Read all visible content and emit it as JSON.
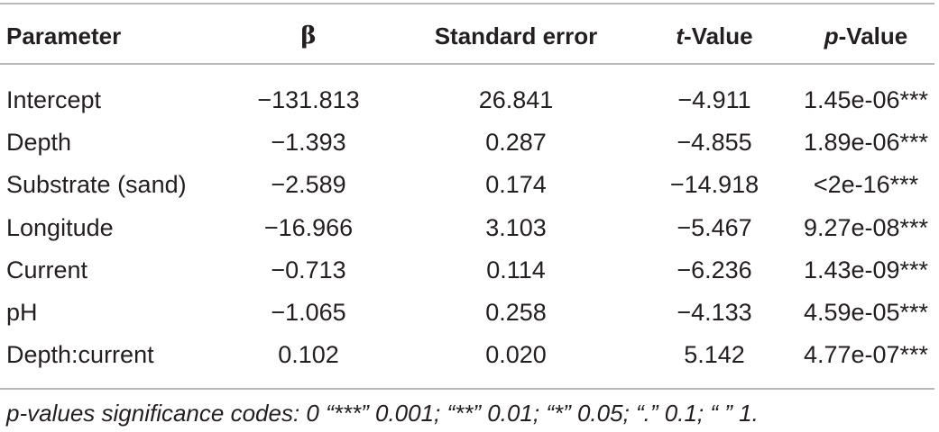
{
  "table": {
    "headers": {
      "parameter": "Parameter",
      "beta": "β",
      "standard_error": "Standard error",
      "t_value_italic": "t",
      "t_value_rest": "-Value",
      "p_value_italic": "p",
      "p_value_rest": "-Value"
    },
    "rows": [
      {
        "parameter": "Intercept",
        "beta": "−131.813",
        "standard_error": "26.841",
        "t_value": "−4.911",
        "p_value": "1.45e-06***"
      },
      {
        "parameter": "Depth",
        "beta": "−1.393",
        "standard_error": "0.287",
        "t_value": "−4.855",
        "p_value": "1.89e-06***"
      },
      {
        "parameter": "Substrate (sand)",
        "beta": "−2.589",
        "standard_error": "0.174",
        "t_value": "−14.918",
        "p_value": "<2e-16***"
      },
      {
        "parameter": "Longitude",
        "beta": "−16.966",
        "standard_error": "3.103",
        "t_value": "−5.467",
        "p_value": "9.27e-08***"
      },
      {
        "parameter": "Current",
        "beta": "−0.713",
        "standard_error": "0.114",
        "t_value": "−6.236",
        "p_value": "1.43e-09***"
      },
      {
        "parameter": "pH",
        "beta": "−1.065",
        "standard_error": "0.258",
        "t_value": "−4.133",
        "p_value": "4.59e-05***"
      },
      {
        "parameter": "Depth:current",
        "beta": "0.102",
        "standard_error": "0.020",
        "t_value": "5.142",
        "p_value": "4.77e-07***"
      }
    ]
  },
  "footnote": "p-values significance codes: 0 “***” 0.001; “**” 0.01; “*” 0.05; “.” 0.1; “ ” 1."
}
